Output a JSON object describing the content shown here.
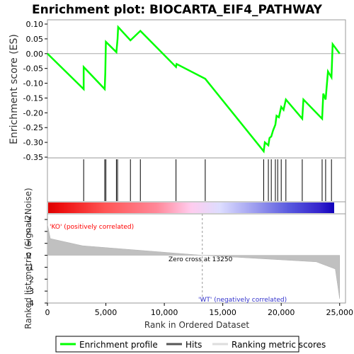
{
  "chart_data": {
    "type": "line",
    "title": "Enrichment plot: BIOCARTA_EIF4_PATHWAY",
    "ylabel": "Enrichment score (ES)",
    "xlabel": "Rank in Ordered Dataset",
    "ylabel2": "Ranked list metric (Signal2Noise)",
    "xlim": [
      0,
      25500
    ],
    "ylim": [
      -0.35,
      0.1
    ],
    "ylim2": [
      -4,
      3
    ],
    "x_ticks": [
      "0",
      "5,000",
      "10,000",
      "15,000",
      "20,000",
      "25,000"
    ],
    "y_ticks": [
      "0.10",
      "0.05",
      "0.00",
      "-0.05",
      "-0.10",
      "-0.15",
      "-0.20",
      "-0.25",
      "-0.30",
      "-0.35"
    ],
    "y2_ticks": [
      "3",
      "2",
      "1",
      "0",
      "-1",
      "-2",
      "-3",
      "-4"
    ],
    "es_profile": {
      "x": [
        0,
        3100,
        3100,
        4900,
        4950,
        5000,
        5900,
        6000,
        6050,
        7100,
        7950,
        11000,
        11050,
        13500,
        18500,
        18600,
        18900,
        19000,
        19150,
        19300,
        19500,
        19600,
        19800,
        20000,
        20200,
        20400,
        21800,
        21900,
        23500,
        23600,
        23800,
        24000,
        24300,
        24400,
        25000
      ],
      "y": [
        0.0,
        -0.12,
        -0.045,
        -0.12,
        -0.065,
        0.04,
        0.005,
        0.05,
        0.09,
        0.045,
        0.077,
        -0.045,
        -0.035,
        -0.085,
        -0.33,
        -0.3,
        -0.31,
        -0.285,
        -0.28,
        -0.26,
        -0.24,
        -0.21,
        -0.215,
        -0.18,
        -0.19,
        -0.155,
        -0.22,
        -0.155,
        -0.22,
        -0.135,
        -0.155,
        -0.06,
        -0.08,
        0.032,
        0.0
      ]
    },
    "hits": [
      3100,
      4900,
      5000,
      5900,
      6000,
      7100,
      7950,
      11000,
      13500,
      18500,
      18900,
      19150,
      19500,
      19700,
      20000,
      20400,
      21800,
      23500,
      23800,
      24300
    ],
    "zero_cross": 13250,
    "annotations": {
      "ko": "'KO' (positively correlated)",
      "wt": "'WT' (negatively correlated)",
      "zero_cross": "Zero cross at 13250"
    },
    "legend": [
      "Enrichment profile",
      "Hits",
      "Ranking metric scores"
    ],
    "colors": {
      "profile": "#00ff00",
      "hits": "#000000",
      "metric": "#c0c0c0",
      "ko": "#ff0000",
      "wt": "#3333cc",
      "bar_gradient": [
        "#dd0000",
        "#ff5555",
        "#ff99bb",
        "#ccccff",
        "#7777ee",
        "#2222cc"
      ]
    }
  }
}
